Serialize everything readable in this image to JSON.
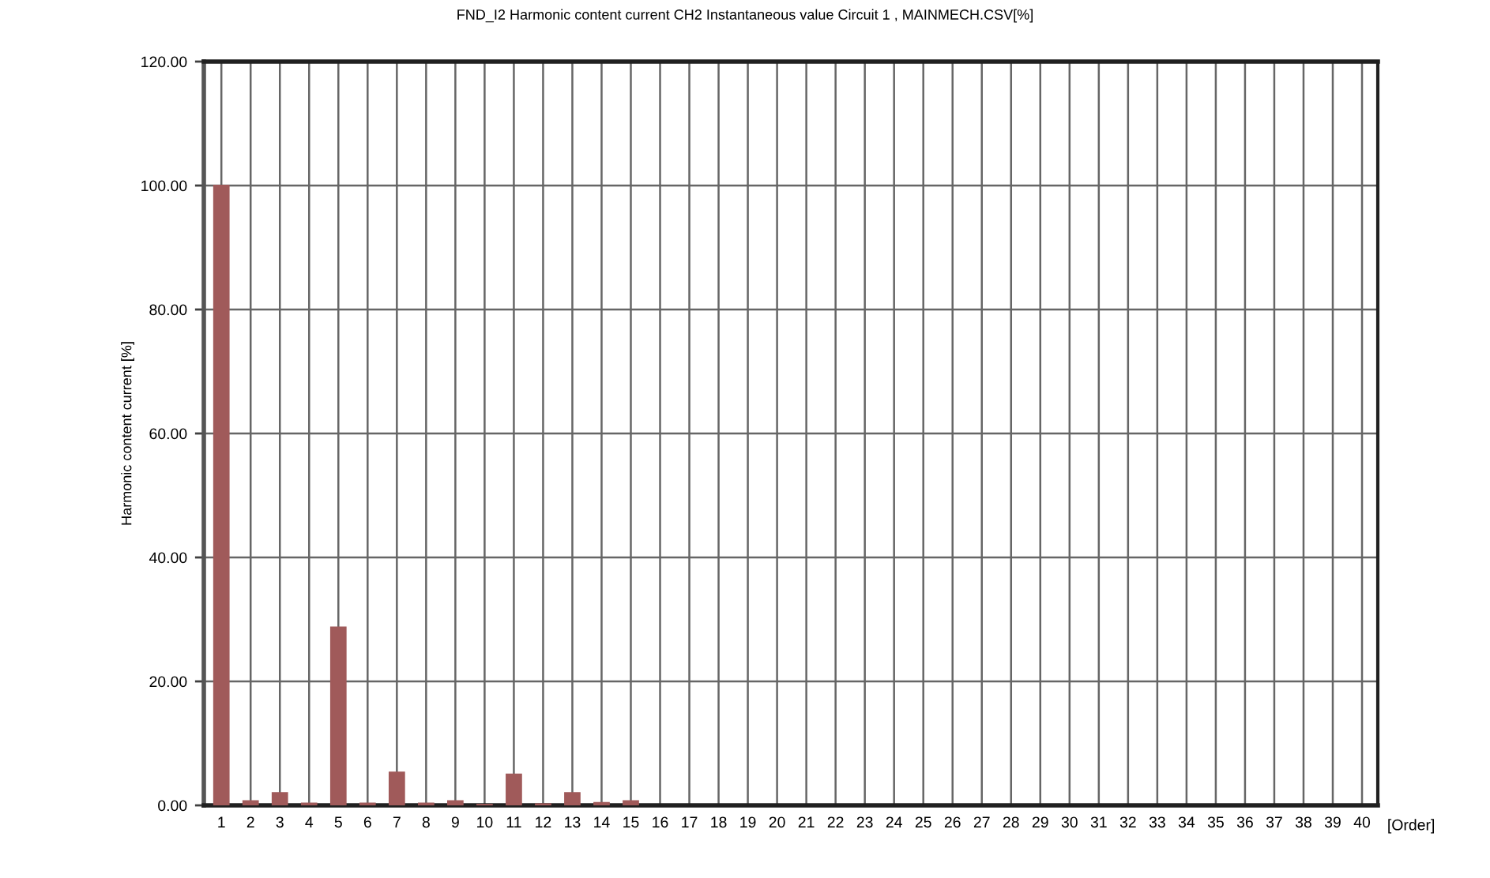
{
  "chart_data": {
    "type": "bar",
    "title": "FND_I2 Harmonic content current CH2 Instantaneous value Circuit 1 , MAINMECH.CSV[%]",
    "xlabel": "[Order]",
    "ylabel": "Harmonic content current [%]",
    "categories": [
      "1",
      "2",
      "3",
      "4",
      "5",
      "6",
      "7",
      "8",
      "9",
      "10",
      "11",
      "12",
      "13",
      "14",
      "15",
      "16",
      "17",
      "18",
      "19",
      "20",
      "21",
      "22",
      "23",
      "24",
      "25",
      "26",
      "27",
      "28",
      "29",
      "30",
      "31",
      "32",
      "33",
      "34",
      "35",
      "36",
      "37",
      "38",
      "39",
      "40"
    ],
    "values": [
      100,
      0.7,
      2.0,
      0.3,
      28.7,
      0.3,
      5.3,
      0.3,
      0.7,
      0.1,
      5.0,
      0.2,
      2.0,
      0.4,
      0.7,
      0,
      0,
      0,
      0,
      0,
      0,
      0,
      0,
      0,
      0,
      0,
      0,
      0,
      0,
      0,
      0,
      0,
      0,
      0,
      0,
      0,
      0,
      0,
      0,
      0
    ],
    "color": "#a05a5a",
    "ylim": [
      0,
      120
    ],
    "yticks": [
      {
        "value": 0,
        "label": "0.00"
      },
      {
        "value": 20,
        "label": "20.00"
      },
      {
        "value": 40,
        "label": "40.00"
      },
      {
        "value": 60,
        "label": "60.00"
      },
      {
        "value": 80,
        "label": "80.00"
      },
      {
        "value": 100,
        "label": "100.00"
      },
      {
        "value": 120,
        "label": "120.00"
      }
    ],
    "grid": true,
    "legend": false
  }
}
